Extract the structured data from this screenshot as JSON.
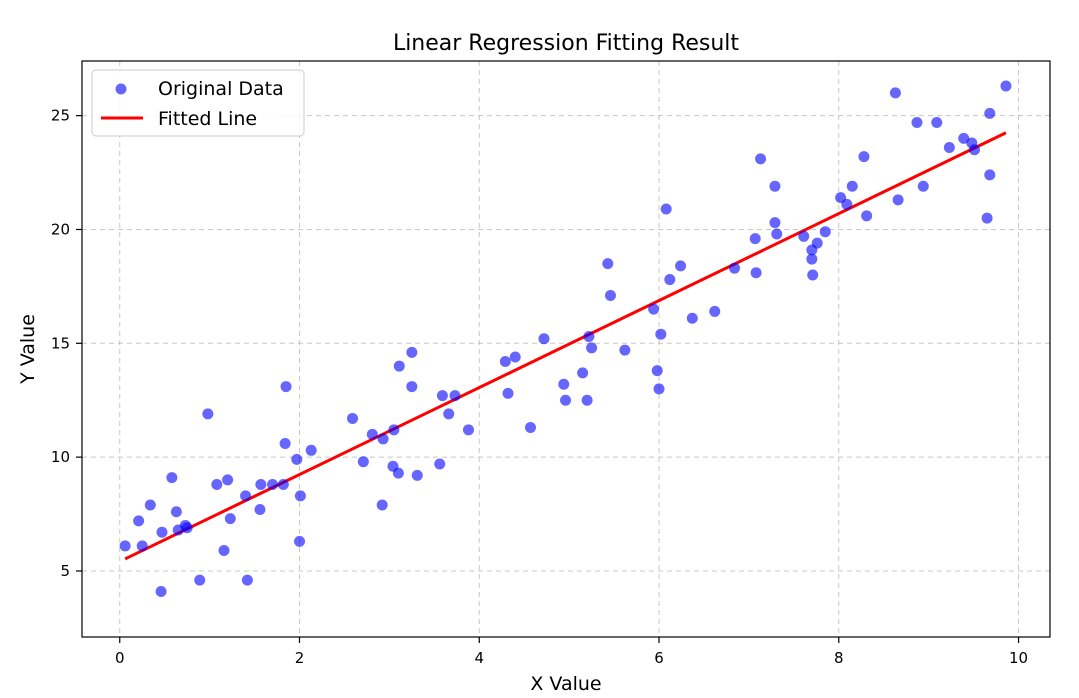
{
  "chart_data": {
    "type": "scatter",
    "title": "Linear Regression Fitting Result",
    "xlabel": "X Value",
    "ylabel": "Y Value",
    "xlim": [
      -0.42,
      10.35
    ],
    "ylim": [
      2.1,
      27.4
    ],
    "xticks": [
      0,
      2,
      4,
      6,
      8,
      10
    ],
    "yticks": [
      5,
      10,
      15,
      20,
      25
    ],
    "grid": true,
    "legend_position": "top-left",
    "series": [
      {
        "name": "Original Data",
        "kind": "scatter",
        "color": "#0000ff",
        "points": [
          [
            0.06,
            6.1
          ],
          [
            0.21,
            7.2
          ],
          [
            0.25,
            6.1
          ],
          [
            0.34,
            7.9
          ],
          [
            0.47,
            6.7
          ],
          [
            0.46,
            4.1
          ],
          [
            0.58,
            9.1
          ],
          [
            0.63,
            7.6
          ],
          [
            0.65,
            6.8
          ],
          [
            0.73,
            7.0
          ],
          [
            0.75,
            6.9
          ],
          [
            0.89,
            4.6
          ],
          [
            0.98,
            11.9
          ],
          [
            1.08,
            8.8
          ],
          [
            1.16,
            5.9
          ],
          [
            1.2,
            9.0
          ],
          [
            1.23,
            7.3
          ],
          [
            1.4,
            8.3
          ],
          [
            1.42,
            4.6
          ],
          [
            1.56,
            7.7
          ],
          [
            1.57,
            8.8
          ],
          [
            1.7,
            8.8
          ],
          [
            1.82,
            8.8
          ],
          [
            1.84,
            10.6
          ],
          [
            1.85,
            13.1
          ],
          [
            1.97,
            9.9
          ],
          [
            2.0,
            6.3
          ],
          [
            2.01,
            8.3
          ],
          [
            2.13,
            10.3
          ],
          [
            2.59,
            11.7
          ],
          [
            2.71,
            9.8
          ],
          [
            2.81,
            11.0
          ],
          [
            2.92,
            7.9
          ],
          [
            2.93,
            10.8
          ],
          [
            3.04,
            9.6
          ],
          [
            3.05,
            11.2
          ],
          [
            3.1,
            9.3
          ],
          [
            3.11,
            14.0
          ],
          [
            3.25,
            14.6
          ],
          [
            3.25,
            13.1
          ],
          [
            3.31,
            9.2
          ],
          [
            3.56,
            9.7
          ],
          [
            3.59,
            12.7
          ],
          [
            3.66,
            11.9
          ],
          [
            3.73,
            12.7
          ],
          [
            3.88,
            11.2
          ],
          [
            4.29,
            14.2
          ],
          [
            4.32,
            12.8
          ],
          [
            4.4,
            14.4
          ],
          [
            4.57,
            11.3
          ],
          [
            4.72,
            15.2
          ],
          [
            4.94,
            13.2
          ],
          [
            4.96,
            12.5
          ],
          [
            5.15,
            13.7
          ],
          [
            5.2,
            12.5
          ],
          [
            5.22,
            15.3
          ],
          [
            5.25,
            14.8
          ],
          [
            5.43,
            18.5
          ],
          [
            5.46,
            17.1
          ],
          [
            5.62,
            14.7
          ],
          [
            5.94,
            16.5
          ],
          [
            5.98,
            13.8
          ],
          [
            6.0,
            13.0
          ],
          [
            6.02,
            15.4
          ],
          [
            6.08,
            20.9
          ],
          [
            6.12,
            17.8
          ],
          [
            6.24,
            18.4
          ],
          [
            6.37,
            16.1
          ],
          [
            6.62,
            16.4
          ],
          [
            6.84,
            18.3
          ],
          [
            7.08,
            18.1
          ],
          [
            7.07,
            19.6
          ],
          [
            7.13,
            23.1
          ],
          [
            7.29,
            21.9
          ],
          [
            7.29,
            20.3
          ],
          [
            7.31,
            19.8
          ],
          [
            7.61,
            19.7
          ],
          [
            7.7,
            19.1
          ],
          [
            7.7,
            18.7
          ],
          [
            7.71,
            18.0
          ],
          [
            7.76,
            19.4
          ],
          [
            7.85,
            19.9
          ],
          [
            8.02,
            21.4
          ],
          [
            8.09,
            21.1
          ],
          [
            8.15,
            21.9
          ],
          [
            8.28,
            23.2
          ],
          [
            8.31,
            20.6
          ],
          [
            8.63,
            26.0
          ],
          [
            8.66,
            21.3
          ],
          [
            8.87,
            24.7
          ],
          [
            8.94,
            21.9
          ],
          [
            9.09,
            24.7
          ],
          [
            9.23,
            23.6
          ],
          [
            9.39,
            24.0
          ],
          [
            9.48,
            23.8
          ],
          [
            9.51,
            23.5
          ],
          [
            9.65,
            20.5
          ],
          [
            9.68,
            22.4
          ],
          [
            9.68,
            25.1
          ],
          [
            9.86,
            26.3
          ]
        ]
      },
      {
        "name": "Fitted Line",
        "kind": "line",
        "color": "#ff0000",
        "x": [
          0.06,
          9.86
        ],
        "y": [
          5.53,
          24.25
        ]
      }
    ]
  }
}
